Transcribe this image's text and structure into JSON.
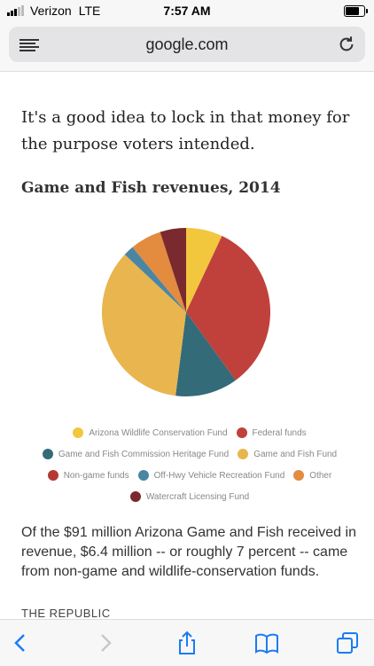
{
  "status_bar": {
    "carrier": "Verizon",
    "network": "LTE",
    "time": "7:57 AM",
    "battery_level": 0.75,
    "signal_bars": 3
  },
  "browser": {
    "url": "google.com",
    "icons": [
      "reader-view-icon",
      "reload-icon",
      "back-icon",
      "forward-icon",
      "share-icon",
      "bookmarks-icon",
      "tabs-icon"
    ],
    "accent_color": "#1a7cf5"
  },
  "article": {
    "intro": "It's a good idea to lock in that money for the purpose voters intended.",
    "caption": "Of the $91 million Arizona Game and Fish received in revenue, $6.4 million -- or roughly 7 percent -- came from non-game and wildlife-conservation funds.",
    "source": "THE REPUBLIC"
  },
  "chart_data": {
    "type": "pie",
    "title": "Game and Fish revenues, 2014",
    "slices": [
      {
        "label": "Arizona Wildlife Conservation Fund",
        "value": 7,
        "color": "#f2c73d"
      },
      {
        "label": "Federal funds",
        "value": 33,
        "color": "#c0413b"
      },
      {
        "label": "Game and Fish Commission Heritage Fund",
        "value": 12,
        "color": "#336b79"
      },
      {
        "label": "Game and Fish Fund",
        "value": 35,
        "color": "#e8b54e"
      },
      {
        "label": "Non-game funds",
        "value": 0,
        "color": "#b33a32"
      },
      {
        "label": "Off-Hwy Vehicle Recreation Fund",
        "value": 2,
        "color": "#4a86a3"
      },
      {
        "label": "Other",
        "value": 6,
        "color": "#e38b3f"
      },
      {
        "label": "Watercraft Licensing Fund",
        "value": 5,
        "color": "#7a2a2e"
      }
    ],
    "legend_position": "bottom"
  }
}
